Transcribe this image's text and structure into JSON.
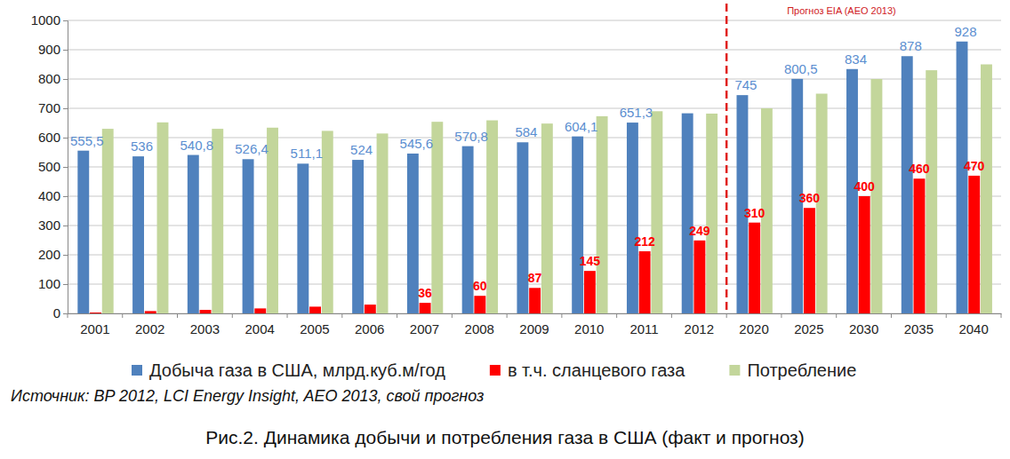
{
  "chart_data": {
    "type": "bar",
    "title": "Рис.2. Динамика добычи и потребления газа в США (факт и прогноз)",
    "source": "Источник: BP 2012, LCI Energy Insight, AEO 2013, свой прогноз",
    "categories": [
      "2001",
      "2002",
      "2003",
      "2004",
      "2005",
      "2006",
      "2007",
      "2008",
      "2009",
      "2010",
      "2011",
      "2012",
      "2020",
      "2025",
      "2030",
      "2035",
      "2040"
    ],
    "series": [
      {
        "name": "Добыча газа в США, млрд.куб.м/год",
        "color": "#4f81bd",
        "values": [
          555.5,
          536,
          540.8,
          526.4,
          511.1,
          524,
          545.6,
          570.8,
          584,
          604.1,
          651.3,
          683,
          745,
          800.5,
          834,
          878,
          928
        ],
        "value_labels": [
          "555,5",
          "536",
          "540,8",
          "526,4",
          "511,1",
          "524",
          "545,6",
          "570,8",
          "584",
          "604,1",
          "651,3",
          null,
          "745",
          "800,5",
          "834",
          "878",
          "928"
        ]
      },
      {
        "name": "в т.ч. сланцевого газа",
        "color": "#ff0000",
        "values": [
          3,
          8,
          12,
          17,
          23,
          30,
          36,
          60,
          87,
          145,
          212,
          249,
          310,
          360,
          400,
          460,
          470
        ],
        "value_labels": [
          null,
          null,
          null,
          null,
          null,
          null,
          "36",
          "60",
          "87",
          "145",
          "212",
          "249",
          "310",
          "360",
          "400",
          "460",
          "470"
        ]
      },
      {
        "name": "Потребление",
        "color": "#c3d69b",
        "values": [
          630,
          652,
          630,
          634,
          623,
          614,
          654,
          659,
          648,
          673,
          690,
          682,
          700,
          750,
          800,
          830,
          850
        ]
      }
    ],
    "annotations": [
      {
        "text": "Прогноз EIA (AEO 2013)",
        "x": "2020"
      }
    ],
    "ylim": [
      0,
      1000
    ],
    "yticks": [
      0,
      100,
      200,
      300,
      400,
      500,
      600,
      700,
      800,
      900,
      1000
    ],
    "grid": true,
    "legend": "bottom",
    "data_labels": true
  }
}
